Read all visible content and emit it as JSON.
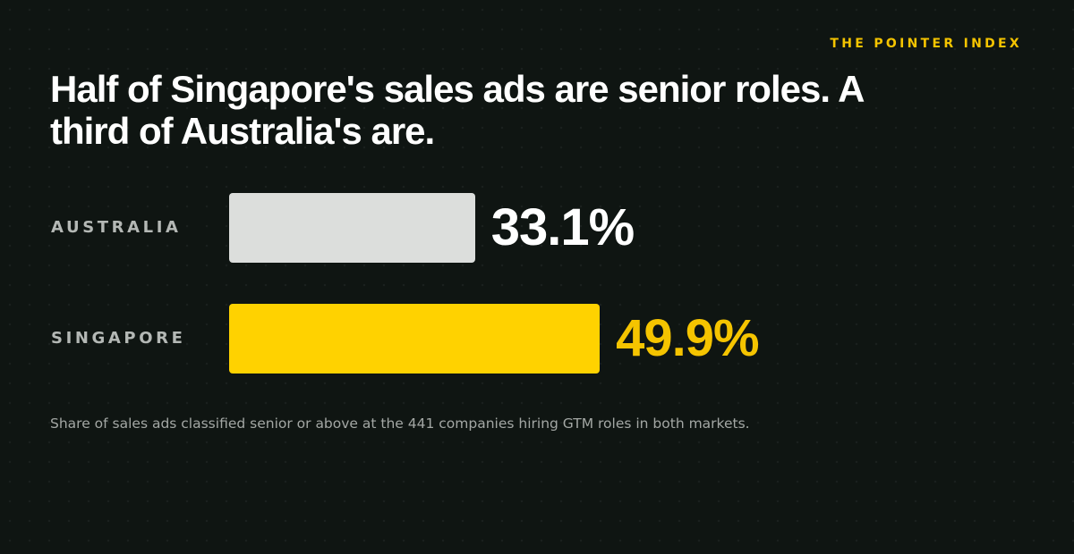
{
  "brand": "THE POINTER INDEX",
  "colors": {
    "background": "#0f1512",
    "accent": "#f5c400",
    "bar_neutral": "#dcdedc",
    "bar_highlight": "#ffd200",
    "value_neutral": "#ffffff",
    "value_highlight": "#f5c400"
  },
  "chart_data": {
    "type": "bar",
    "orientation": "horizontal",
    "title": "Half of Singapore's sales ads are senior roles. A third of Australia's are.",
    "categories": [
      "AUSTRALIA",
      "SINGAPORE"
    ],
    "values": [
      33.1,
      49.9
    ],
    "value_labels": [
      "33.1%",
      "49.9%"
    ],
    "unit": "%",
    "xlim": [
      0,
      100
    ],
    "highlight": "SINGAPORE",
    "grid": false,
    "legend": "none",
    "note": "Share of sales ads classified senior or above at the 441 companies hiring GTM roles in both markets."
  }
}
